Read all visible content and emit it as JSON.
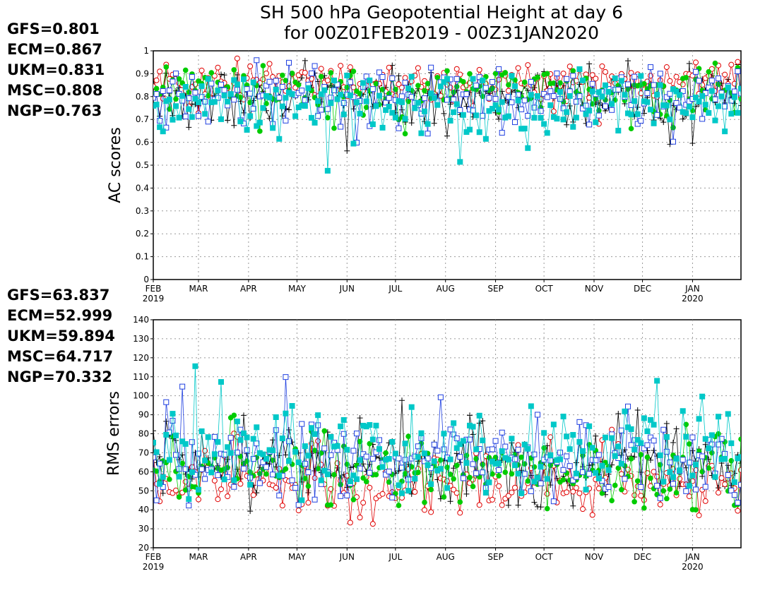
{
  "title": {
    "line1": "SH 500 hPa Geopotential Height at day 6",
    "line2": "for 00Z01FEB2019 - 00Z31JAN2020"
  },
  "models": [
    {
      "name": "GFS",
      "color": "#000000",
      "marker": "plus"
    },
    {
      "name": "ECM",
      "color": "#e00000",
      "marker": "open-circle"
    },
    {
      "name": "UKM",
      "color": "#00cc00",
      "marker": "filled-circle"
    },
    {
      "name": "MSC",
      "color": "#2040e0",
      "marker": "open-square"
    },
    {
      "name": "NGP",
      "color": "#00c8c8",
      "marker": "filled-square"
    }
  ],
  "chart_data": [
    {
      "type": "scatter",
      "ylabel": "AC scores",
      "ylim": [
        0,
        1
      ],
      "yticks": [
        "0",
        "0.1",
        "0.2",
        "0.3",
        "0.4",
        "0.5",
        "0.6",
        "0.7",
        "0.8",
        "0.9",
        "1"
      ],
      "grid": true,
      "xlim_days": [
        0,
        364
      ],
      "months": [
        {
          "label": "FEB",
          "year": "2019",
          "day": 0
        },
        {
          "label": "MAR",
          "day": 28
        },
        {
          "label": "APR",
          "day": 59
        },
        {
          "label": "MAY",
          "day": 89
        },
        {
          "label": "JUN",
          "day": 120
        },
        {
          "label": "JUL",
          "day": 150
        },
        {
          "label": "AUG",
          "day": 181
        },
        {
          "label": "SEP",
          "day": 212
        },
        {
          "label": "OCT",
          "day": 242
        },
        {
          "label": "NOV",
          "day": 273
        },
        {
          "label": "DEC",
          "day": 303
        },
        {
          "label": "JAN",
          "year": "2020",
          "day": 334
        }
      ],
      "legend": [
        {
          "text": "GFS=0.801",
          "color": "#000000"
        },
        {
          "text": "ECM=0.867",
          "color": "#e00000"
        },
        {
          "text": "UKM=0.831",
          "color": "#00cc00"
        },
        {
          "text": "MSC=0.808",
          "color": "#2040e0"
        },
        {
          "text": "NGP=0.763",
          "color": "#00c8c8"
        }
      ],
      "series": [
        {
          "name": "GFS",
          "mean": 0.801,
          "spread": 0.06
        },
        {
          "name": "ECM",
          "mean": 0.867,
          "spread": 0.04
        },
        {
          "name": "UKM",
          "mean": 0.831,
          "spread": 0.05
        },
        {
          "name": "MSC",
          "mean": 0.808,
          "spread": 0.06
        },
        {
          "name": "NGP",
          "mean": 0.763,
          "spread": 0.07
        }
      ]
    },
    {
      "type": "scatter",
      "ylabel": "RMS errors",
      "ylim": [
        20,
        140
      ],
      "yticks": [
        "20",
        "30",
        "40",
        "50",
        "60",
        "70",
        "80",
        "90",
        "100",
        "110",
        "120",
        "130",
        "140"
      ],
      "grid": true,
      "xlim_days": [
        0,
        364
      ],
      "months": [
        {
          "label": "FEB",
          "year": "2019",
          "day": 0
        },
        {
          "label": "MAR",
          "day": 28
        },
        {
          "label": "APR",
          "day": 59
        },
        {
          "label": "MAY",
          "day": 89
        },
        {
          "label": "JUN",
          "day": 120
        },
        {
          "label": "JUL",
          "day": 150
        },
        {
          "label": "AUG",
          "day": 181
        },
        {
          "label": "SEP",
          "day": 212
        },
        {
          "label": "OCT",
          "day": 242
        },
        {
          "label": "NOV",
          "day": 273
        },
        {
          "label": "DEC",
          "day": 303
        },
        {
          "label": "JAN",
          "year": "2020",
          "day": 334
        }
      ],
      "legend": [
        {
          "text": "GFS=63.837",
          "color": "#000000"
        },
        {
          "text": "ECM=52.999",
          "color": "#e00000"
        },
        {
          "text": "UKM=59.894",
          "color": "#00cc00"
        },
        {
          "text": "MSC=64.717",
          "color": "#2040e0"
        },
        {
          "text": "NGP=70.332",
          "color": "#00c8c8"
        }
      ],
      "series": [
        {
          "name": "GFS",
          "mean": 63.837,
          "spread": 10
        },
        {
          "name": "ECM",
          "mean": 52.999,
          "spread": 8
        },
        {
          "name": "UKM",
          "mean": 59.894,
          "spread": 9
        },
        {
          "name": "MSC",
          "mean": 64.717,
          "spread": 10
        },
        {
          "name": "NGP",
          "mean": 70.332,
          "spread": 11
        }
      ]
    }
  ]
}
